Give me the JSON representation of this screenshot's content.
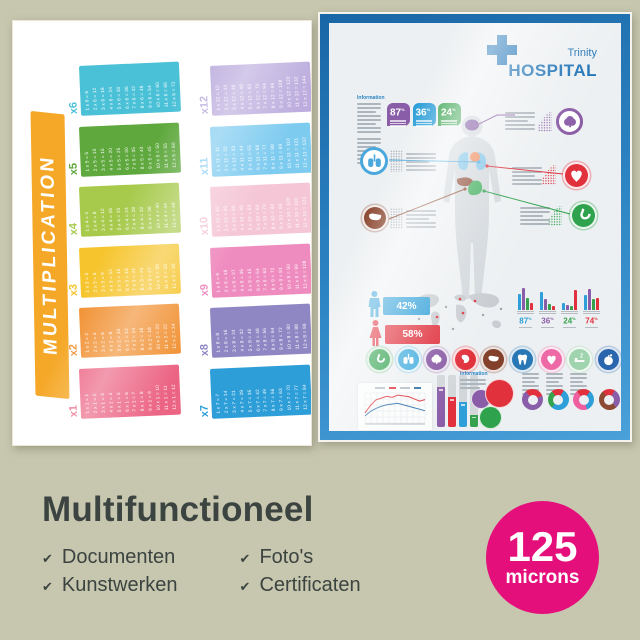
{
  "background": "#c7c6ae",
  "multiplication_poster": {
    "title": "MULTIPLICATION",
    "banner_color": "#f5a828",
    "tables": [
      {
        "label": "x1",
        "color": "#ec6484",
        "lines": [
          "1 x 1 = 1",
          "2 x 1 = 2",
          "3 x 1 = 3",
          "4 x 1 = 4",
          "5 x 1 = 5",
          "6 x 1 = 6",
          "7 x 1 = 7",
          "8 x 1 = 8",
          "9 x 1 = 9",
          "10 x 1 = 10",
          "11 x 1 = 11",
          "12 x 1 = 12"
        ]
      },
      {
        "label": "x2",
        "color": "#f19133",
        "lines": [
          "1 x 2 = 2",
          "2 x 2 = 4",
          "3 x 2 = 6",
          "4 x 2 = 8",
          "5 x 2 = 10",
          "6 x 2 = 12",
          "7 x 2 = 14",
          "8 x 2 = 16",
          "9 x 2 = 18",
          "10 x 2 = 20",
          "11 x 2 = 22",
          "12 x 2 = 24"
        ]
      },
      {
        "label": "x3",
        "color": "#f6c52e",
        "lines": [
          "1 x 3 = 3",
          "2 x 3 = 6",
          "3 x 3 = 9",
          "4 x 3 = 12",
          "5 x 3 = 15",
          "6 x 3 = 18",
          "7 x 3 = 21",
          "8 x 3 = 24",
          "9 x 3 = 27",
          "10 x 3 = 30",
          "11 x 3 = 33",
          "12 x 3 = 36"
        ]
      },
      {
        "label": "x4",
        "color": "#a7ca4d",
        "lines": [
          "1 x 4 = 4",
          "2 x 4 = 8",
          "3 x 4 = 12",
          "4 x 4 = 16",
          "5 x 4 = 20",
          "6 x 4 = 24",
          "7 x 4 = 28",
          "8 x 4 = 32",
          "9 x 4 = 36",
          "10 x 4 = 40",
          "11 x 4 = 44",
          "12 x 4 = 48"
        ]
      },
      {
        "label": "x5",
        "color": "#5ea83d",
        "lines": [
          "1 x 5 = 5",
          "2 x 5 = 10",
          "3 x 5 = 15",
          "4 x 5 = 20",
          "5 x 5 = 25",
          "6 x 5 = 30",
          "7 x 5 = 35",
          "8 x 5 = 40",
          "9 x 5 = 45",
          "10 x 5 = 50",
          "11 x 5 = 55",
          "12 x 5 = 60"
        ]
      },
      {
        "label": "x6",
        "color": "#4bc1d8",
        "lines": [
          "1 x 6 = 6",
          "2 x 6 = 12",
          "3 x 6 = 18",
          "4 x 6 = 24",
          "5 x 6 = 30",
          "6 x 6 = 36",
          "7 x 6 = 42",
          "8 x 6 = 48",
          "9 x 6 = 54",
          "10 x 6 = 60",
          "11 x 6 = 66",
          "12 x 6 = 72"
        ]
      },
      {
        "label": "x7",
        "color": "#2d9ed8",
        "lines": [
          "1 x 7 = 7",
          "2 x 7 = 14",
          "3 x 7 = 21",
          "4 x 7 = 28",
          "5 x 7 = 35",
          "6 x 7 = 42",
          "7 x 7 = 49",
          "8 x 7 = 56",
          "9 x 7 = 63",
          "10 x 7 = 70",
          "11 x 7 = 77",
          "12 x 7 = 84"
        ]
      },
      {
        "label": "x8",
        "color": "#8f87c4",
        "lines": [
          "1 x 8 = 8",
          "2 x 8 = 16",
          "3 x 8 = 24",
          "4 x 8 = 32",
          "5 x 8 = 40",
          "6 x 8 = 48",
          "7 x 8 = 56",
          "8 x 8 = 64",
          "9 x 8 = 72",
          "10 x 8 = 80",
          "11 x 8 = 88",
          "12 x 8 = 96"
        ]
      },
      {
        "label": "x9",
        "color": "#ef8cbf",
        "lines": [
          "1 x 9 = 9",
          "2 x 9 = 18",
          "3 x 9 = 27",
          "4 x 9 = 36",
          "5 x 9 = 45",
          "6 x 9 = 54",
          "7 x 9 = 63",
          "8 x 9 = 72",
          "9 x 9 = 81",
          "10 x 9 = 90",
          "11 x 9 = 99",
          "12 x 9 = 108"
        ]
      },
      {
        "label": "x10",
        "color": "#f5c6d6",
        "lines": [
          "1 x 10 = 10",
          "2 x 10 = 20",
          "3 x 10 = 30",
          "4 x 10 = 40",
          "5 x 10 = 50",
          "6 x 10 = 60",
          "7 x 10 = 70",
          "8 x 10 = 80",
          "9 x 10 = 90",
          "10 x 10 = 100",
          "11 x 10 = 110",
          "12 x 10 = 120"
        ]
      },
      {
        "label": "x11",
        "color": "#7ecbf0",
        "lines": [
          "1 x 11 = 11",
          "2 x 11 = 22",
          "3 x 11 = 33",
          "4 x 11 = 44",
          "5 x 11 = 55",
          "6 x 11 = 66",
          "7 x 11 = 77",
          "8 x 11 = 88",
          "9 x 11 = 99",
          "10 x 11 = 110",
          "11 x 11 = 121",
          "12 x 11 = 132"
        ]
      },
      {
        "label": "x12",
        "color": "#bcadde",
        "lines": [
          "1 x 12 = 12",
          "2 x 12 = 24",
          "3 x 12 = 36",
          "4 x 12 = 48",
          "5 x 12 = 60",
          "6 x 12 = 72",
          "7 x 12 = 84",
          "8 x 12 = 96",
          "9 x 12 = 108",
          "10 x 12 = 120",
          "11 x 12 = 132",
          "12 x 12 = 144"
        ]
      }
    ]
  },
  "hospital_poster": {
    "frame_color": "#2278b7",
    "brand_color": "#1d71b8",
    "brand_line1": "Trinity",
    "brand_line2": "HOSPITAL",
    "info_heading": "Information",
    "badges": [
      {
        "value": "87",
        "unit": "%",
        "color": "#8a5da8"
      },
      {
        "value": "36",
        "unit": "%",
        "color": "#2e9fd8"
      },
      {
        "value": "24",
        "unit": "%",
        "color": "#37a24e"
      }
    ],
    "male_pct": "42%",
    "female_pct": "58%",
    "male_color": "#2e9fd8",
    "female_color": "#e0313d",
    "group_bar_colors": [
      "#2e9fd8",
      "#8a5da8",
      "#37a24e",
      "#e0313d"
    ],
    "stat_groups": [
      {
        "label": "87",
        "unit": "%",
        "color": "#2e9fd8",
        "bars": [
          16,
          22,
          12,
          7
        ]
      },
      {
        "label": "36",
        "unit": "%",
        "color": "#8a5da8",
        "bars": [
          18,
          11,
          6,
          4
        ]
      },
      {
        "label": "24",
        "unit": "%",
        "color": "#37a24e",
        "bars": [
          7,
          5,
          4,
          20
        ]
      },
      {
        "label": "74",
        "unit": "%",
        "color": "#e0313d",
        "bars": [
          15,
          21,
          11,
          12
        ]
      }
    ],
    "callouts": [
      {
        "icon": "brain-icon",
        "color": "#8a5ca6"
      },
      {
        "icon": "lungs-icon",
        "color": "#4aa8dc"
      },
      {
        "icon": "heart-icon",
        "color": "#e0313d"
      },
      {
        "icon": "liver-icon",
        "color": "#8d4a33"
      },
      {
        "icon": "stomach-icon",
        "color": "#2fa24e"
      }
    ],
    "organ_row": [
      {
        "icon": "stomach-icon",
        "color": "#2fa14d"
      },
      {
        "icon": "lungs-icon",
        "color": "#45aede"
      },
      {
        "icon": "brain-icon",
        "color": "#8a5ca6"
      },
      {
        "icon": "muscle-icon",
        "color": "#e1333e"
      },
      {
        "icon": "liver-icon",
        "color": "#83402b"
      },
      {
        "icon": "tooth-icon",
        "color": "#2878b5"
      },
      {
        "icon": "heart-icon",
        "color": "#ee6aa7"
      },
      {
        "icon": "sleep-icon",
        "color": "#9fd4ae"
      },
      {
        "icon": "apple-icon",
        "color": "#2a66ae"
      }
    ],
    "progress_bars": [
      {
        "color": "#8a5da8",
        "pct": 76
      },
      {
        "color": "#e0313d",
        "pct": 57
      },
      {
        "color": "#2e9fd8",
        "pct": 48
      },
      {
        "color": "#37a24e",
        "pct": 24
      }
    ],
    "bubbles": [
      "#8a5da8",
      "#e0313d",
      "#2fa24e"
    ],
    "donuts": [
      {
        "segments": [
          [
            "#e0313d",
            110
          ],
          [
            "#8a5da8",
            250
          ]
        ]
      },
      {
        "segments": [
          [
            "#e0313d",
            70
          ],
          [
            "#2e9fd8",
            190
          ],
          [
            "#37a24e",
            100
          ]
        ]
      },
      {
        "segments": [
          [
            "#e0313d",
            80
          ],
          [
            "#2e9fd8",
            120
          ],
          [
            "#ef5f9f",
            160
          ]
        ]
      },
      {
        "segments": [
          [
            "#e0313d",
            70
          ],
          [
            "#8a5da8",
            110
          ],
          [
            "#8d4a33",
            180
          ]
        ]
      }
    ],
    "trend_red": [
      3.0,
      5.0,
      6.5,
      7.0,
      7.5,
      7.2,
      7.8,
      7.6,
      7.4,
      6.8,
      6.2,
      6.6
    ],
    "trend_blue": [
      2.2,
      3.4,
      4.2,
      4.8,
      5.2,
      5.4,
      5.6,
      5.2,
      4.8,
      4.4,
      4.0,
      3.6
    ]
  },
  "caption": {
    "title": "Multifunctioneel",
    "bullet": "✔",
    "features_left": [
      "Documenten",
      "Kunstwerken"
    ],
    "features_right": [
      "Foto's",
      "Certificaten"
    ],
    "text_color": "#3b4440"
  },
  "badge": {
    "value": "125",
    "unit": "microns",
    "color": "#e50f7c"
  }
}
